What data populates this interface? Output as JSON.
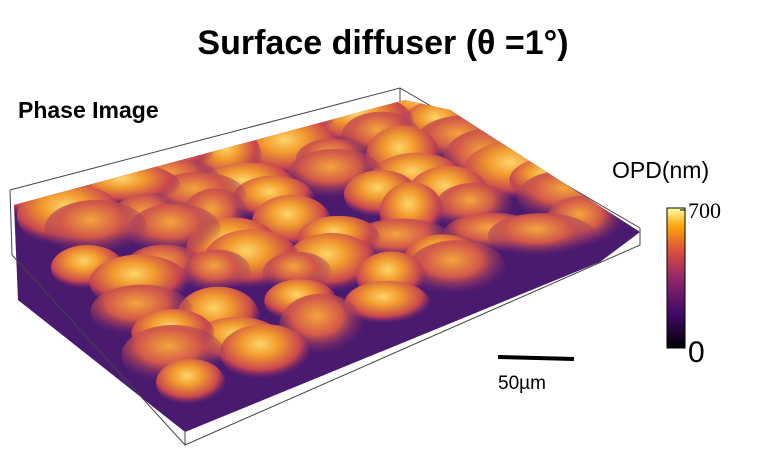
{
  "title": "Surface diffuser (θ =1°)",
  "panel_label": "Phase Image",
  "colorbar": {
    "label": "OPD(nm)",
    "lim": [
      0,
      700
    ],
    "ticks": [
      0,
      700
    ]
  },
  "scale_bar": {
    "label": "50µm"
  }
}
